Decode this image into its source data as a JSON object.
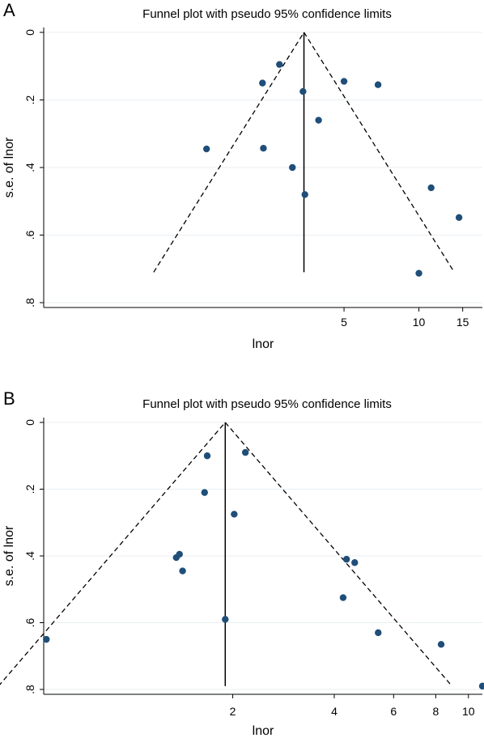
{
  "chart_data": [
    {
      "type": "scatter",
      "panel_label": "A",
      "title": "Funnel plot with pseudo 95% confidence limits",
      "xlabel": "lnor",
      "ylabel": "s.e. of lnor",
      "x_scale": "log",
      "y_reversed": true,
      "xlim": [
        0.31,
        18
      ],
      "ylim": [
        0,
        0.8
      ],
      "xticks": [
        5,
        10,
        15
      ],
      "xtick_labels": [
        "5",
        "10",
        "15"
      ],
      "yticks": [
        0,
        0.2,
        0.4,
        0.6,
        0.8
      ],
      "ytick_labels": [
        "0",
        ".2",
        ".4",
        ".6",
        ".8"
      ],
      "grid": true,
      "pooled_estimate": 3.45,
      "funnel_apex_se": 0,
      "funnel_base_se": 0.71,
      "series": [
        {
          "points": [
            {
              "x": 2.75,
              "y": 0.095
            },
            {
              "x": 2.35,
              "y": 0.15
            },
            {
              "x": 3.42,
              "y": 0.175
            },
            {
              "x": 5.0,
              "y": 0.145
            },
            {
              "x": 6.85,
              "y": 0.155
            },
            {
              "x": 3.95,
              "y": 0.26
            },
            {
              "x": 1.4,
              "y": 0.345
            },
            {
              "x": 2.37,
              "y": 0.343
            },
            {
              "x": 3.1,
              "y": 0.4
            },
            {
              "x": 3.48,
              "y": 0.48
            },
            {
              "x": 11.2,
              "y": 0.46
            },
            {
              "x": 14.5,
              "y": 0.548
            },
            {
              "x": 10.0,
              "y": 0.713
            }
          ]
        }
      ]
    },
    {
      "type": "scatter",
      "panel_label": "B",
      "title": "Funnel plot with pseudo 95% confidence limits",
      "xlabel": "lnor",
      "ylabel": "s.e. of lnor",
      "x_scale": "log",
      "y_reversed": true,
      "xlim": [
        0.55,
        11
      ],
      "ylim": [
        0,
        0.8
      ],
      "xticks": [
        2,
        4,
        6,
        8,
        10
      ],
      "xtick_labels": [
        "2",
        "4",
        "6",
        "8",
        "10"
      ],
      "yticks": [
        0,
        0.2,
        0.4,
        0.6,
        0.8
      ],
      "ytick_labels": [
        "0",
        ".2",
        ".4",
        ".6",
        ".8"
      ],
      "grid": true,
      "pooled_estimate": 1.9,
      "funnel_apex_se": 0,
      "funnel_base_se": 0.79,
      "series": [
        {
          "points": [
            {
              "x": 2.18,
              "y": 0.09
            },
            {
              "x": 1.68,
              "y": 0.1
            },
            {
              "x": 1.65,
              "y": 0.21
            },
            {
              "x": 2.02,
              "y": 0.275
            },
            {
              "x": 1.36,
              "y": 0.405
            },
            {
              "x": 1.39,
              "y": 0.395
            },
            {
              "x": 1.42,
              "y": 0.445
            },
            {
              "x": 4.35,
              "y": 0.41
            },
            {
              "x": 4.6,
              "y": 0.42
            },
            {
              "x": 4.25,
              "y": 0.525
            },
            {
              "x": 1.9,
              "y": 0.59
            },
            {
              "x": 5.4,
              "y": 0.63
            },
            {
              "x": 8.3,
              "y": 0.665
            },
            {
              "x": 0.56,
              "y": 0.65
            },
            {
              "x": 11.0,
              "y": 0.79
            }
          ]
        }
      ]
    }
  ]
}
